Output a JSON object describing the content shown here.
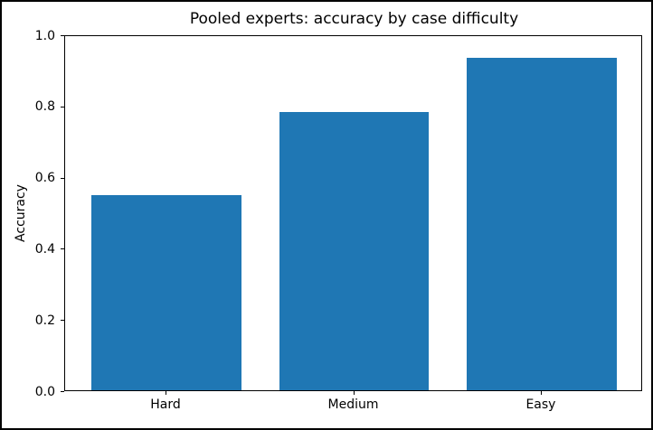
{
  "chart_data": {
    "type": "bar",
    "title": "Pooled experts: accuracy by case difficulty",
    "xlabel": "",
    "ylabel": "Accuracy",
    "categories": [
      "Hard",
      "Medium",
      "Easy"
    ],
    "values": [
      0.55,
      0.785,
      0.94
    ],
    "ylim": [
      0.0,
      1.0
    ],
    "yticks": [
      0.0,
      0.2,
      0.4,
      0.6,
      0.8,
      1.0
    ],
    "ytick_labels": [
      "0.0",
      "0.2",
      "0.4",
      "0.6",
      "0.8",
      "1.0"
    ],
    "grid": false,
    "legend_position": "none",
    "bar_color": "#1f77b4",
    "axis_color": "#000000",
    "background_color": "#ffffff",
    "frame_color": "#000000"
  }
}
